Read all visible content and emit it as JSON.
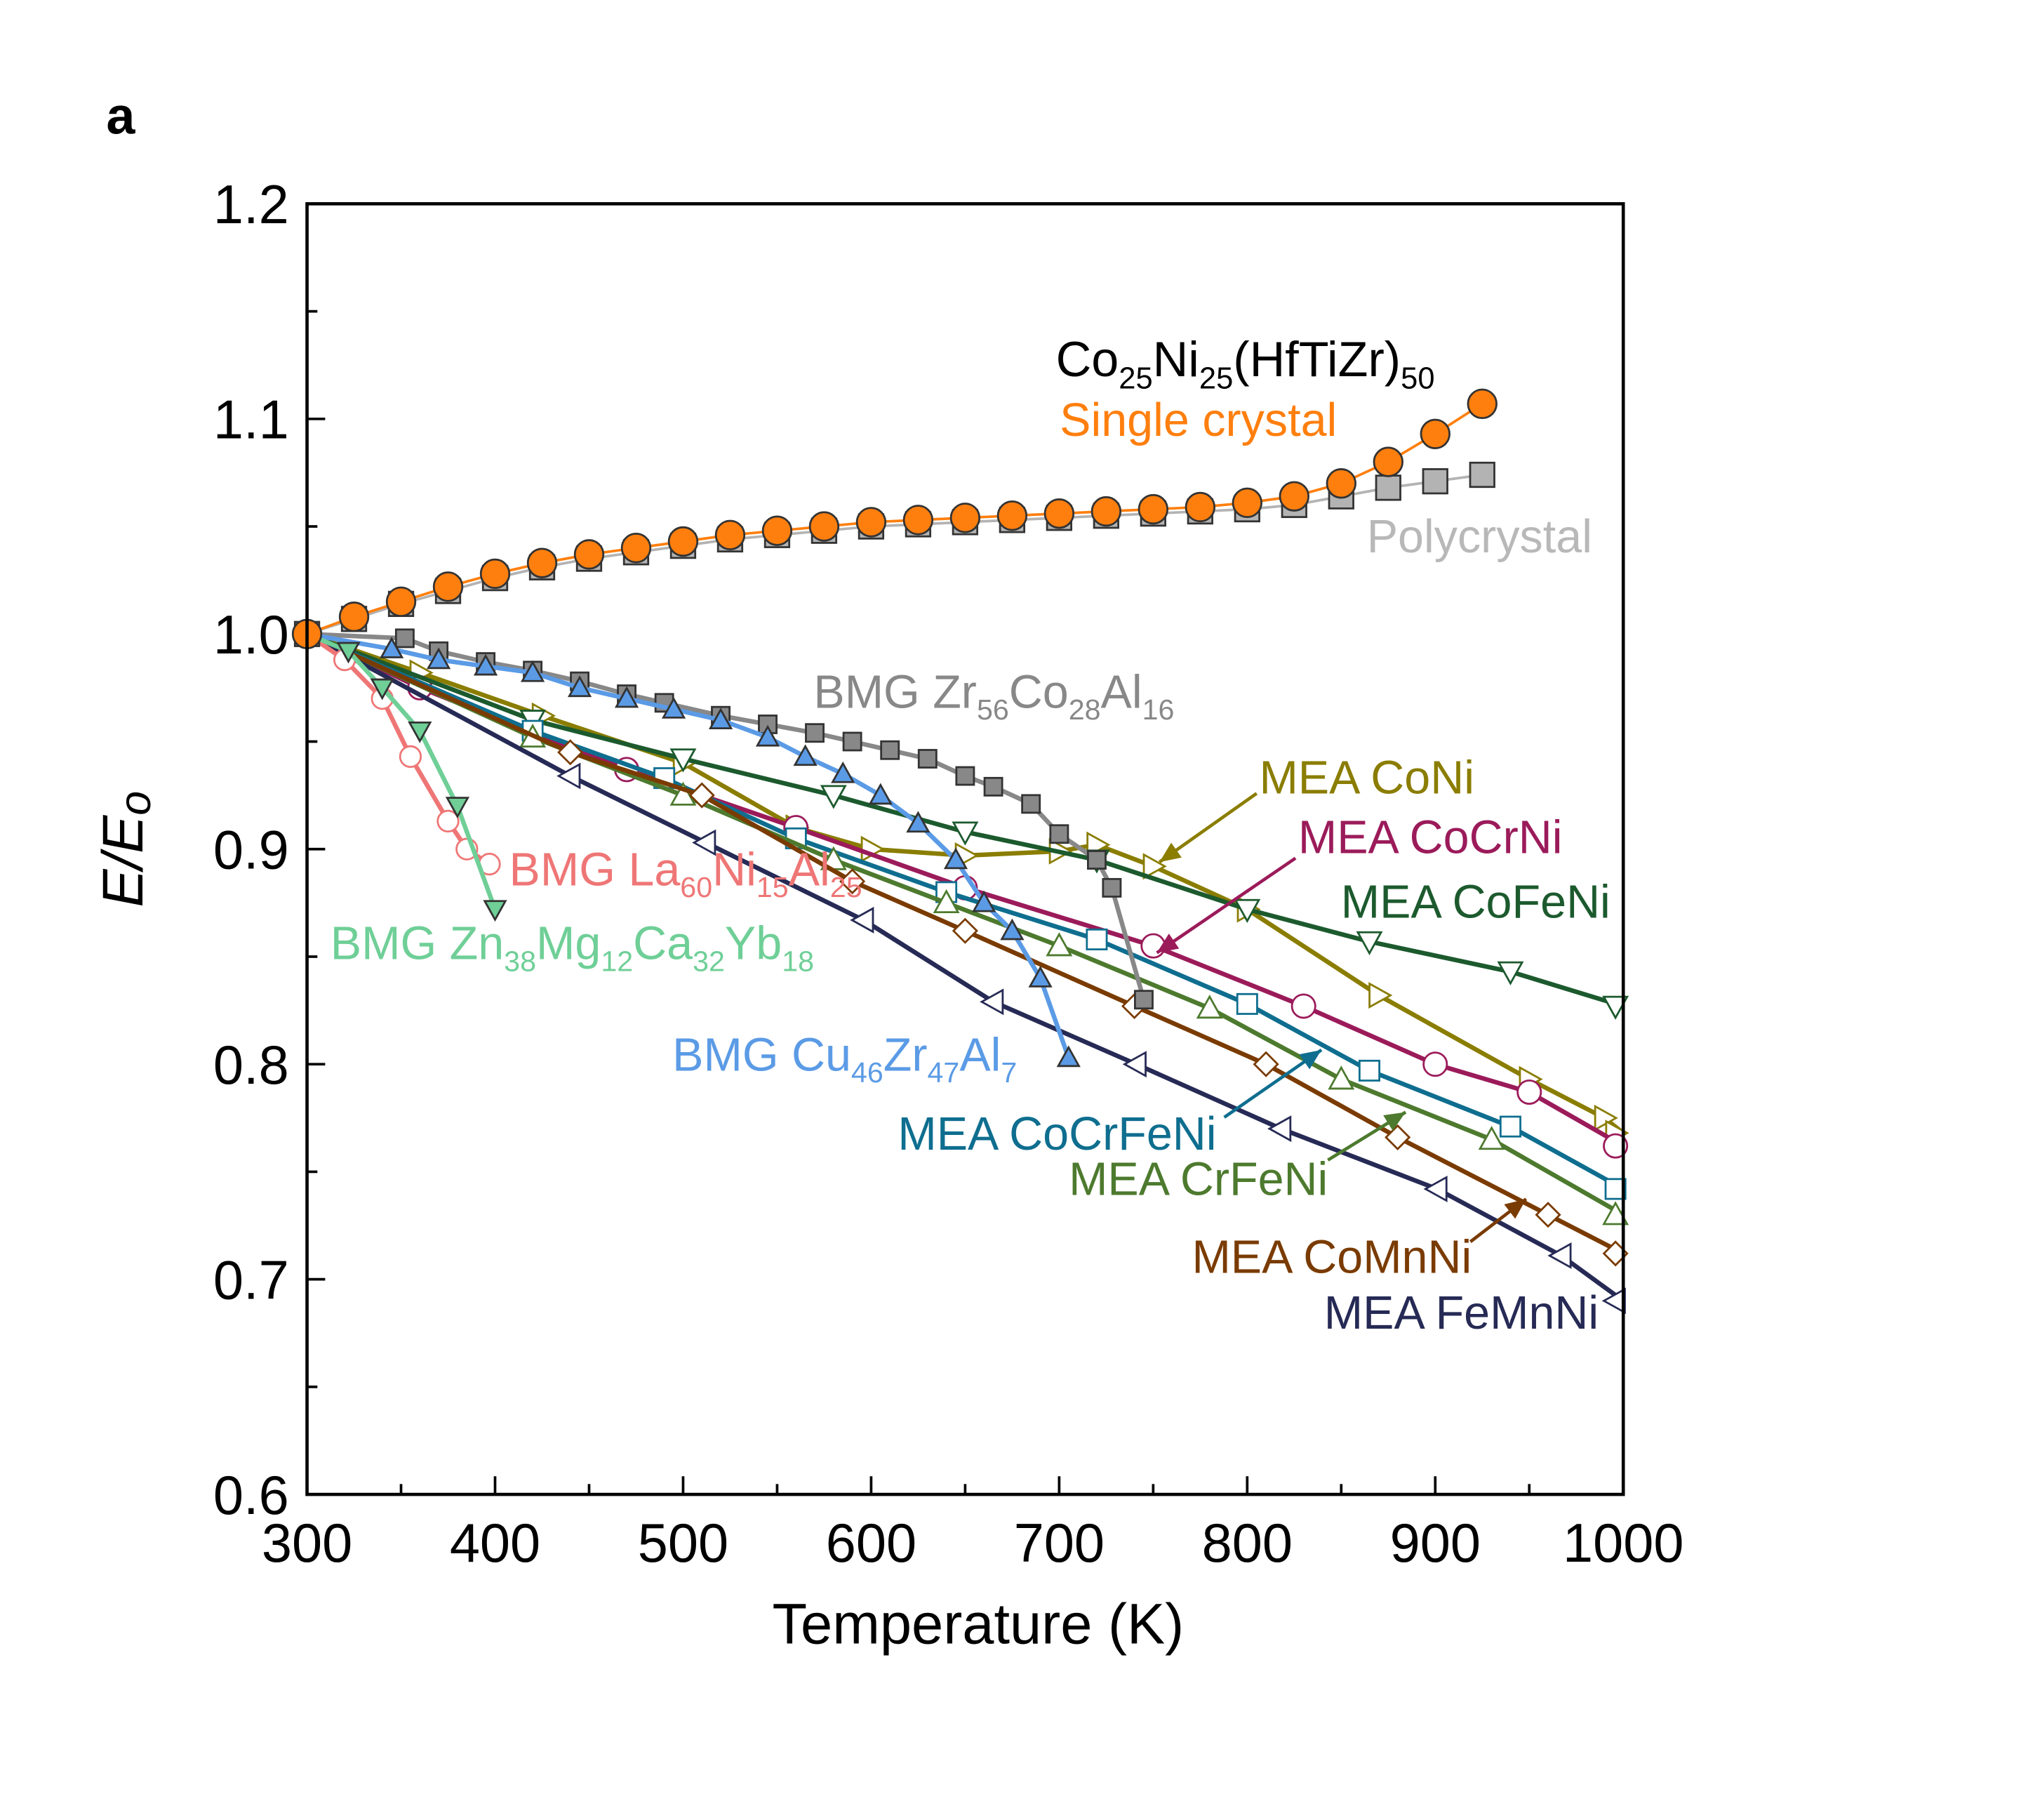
{
  "panel_label": "a",
  "chart_data": {
    "type": "line",
    "xlabel": "Temperature (K)",
    "ylabel": "E/E",
    "ylabel_sub": "o",
    "xlim": [
      300,
      1000
    ],
    "ylim": [
      0.6,
      1.2
    ],
    "xticks": [
      "300",
      "400",
      "500",
      "600",
      "700",
      "800",
      "900",
      "1000"
    ],
    "yticks": [
      "0.6",
      "0.7",
      "0.8",
      "0.9",
      "1.0",
      "1.1",
      "1.2"
    ],
    "grid": false,
    "annotations": {
      "alloy": [
        {
          "t": "Co"
        },
        {
          "t": "25",
          "sub": true
        },
        {
          "t": "Ni"
        },
        {
          "t": "25",
          "sub": true
        },
        {
          "t": "(HfTiZr)"
        },
        {
          "t": "50",
          "sub": true
        }
      ]
    },
    "series": [
      {
        "name": "Single crystal",
        "color": "#ff7f0e",
        "marker": "circle",
        "filled": true,
        "x": [
          300,
          325,
          350,
          375,
          400,
          425,
          450,
          475,
          500,
          525,
          550,
          575,
          600,
          625,
          650,
          675,
          700,
          725,
          750,
          775,
          800,
          825,
          850,
          875,
          900,
          925
        ],
        "y": [
          1.0,
          1.008,
          1.015,
          1.022,
          1.028,
          1.033,
          1.037,
          1.04,
          1.043,
          1.046,
          1.048,
          1.05,
          1.052,
          1.053,
          1.054,
          1.055,
          1.056,
          1.057,
          1.058,
          1.059,
          1.061,
          1.064,
          1.07,
          1.08,
          1.093,
          1.107
        ]
      },
      {
        "name": "Polycrystal",
        "color": "#b3b3b3",
        "marker": "square",
        "filled": true,
        "x": [
          300,
          325,
          350,
          375,
          400,
          425,
          450,
          475,
          500,
          525,
          550,
          575,
          600,
          625,
          650,
          675,
          700,
          725,
          750,
          775,
          800,
          825,
          850,
          875,
          900,
          925
        ],
        "y": [
          1.0,
          1.007,
          1.014,
          1.02,
          1.026,
          1.031,
          1.035,
          1.038,
          1.041,
          1.044,
          1.046,
          1.048,
          1.05,
          1.051,
          1.052,
          1.053,
          1.054,
          1.055,
          1.056,
          1.057,
          1.058,
          1.06,
          1.064,
          1.068,
          1.071,
          1.074
        ]
      },
      {
        "name": [
          {
            "t": "BMG Zr"
          },
          {
            "t": "56",
            "sub": true
          },
          {
            "t": "Co"
          },
          {
            "t": "28",
            "sub": true
          },
          {
            "t": "Al"
          },
          {
            "t": "16",
            "sub": true
          }
        ],
        "color": "#888888",
        "marker": "square",
        "filled": true,
        "x": [
          300,
          352,
          370,
          395,
          420,
          445,
          470,
          490,
          520,
          545,
          570,
          590,
          610,
          630,
          650,
          665,
          685,
          700,
          720,
          728,
          745
        ],
        "y": [
          1.0,
          0.998,
          0.992,
          0.987,
          0.983,
          0.978,
          0.972,
          0.968,
          0.962,
          0.958,
          0.954,
          0.95,
          0.946,
          0.942,
          0.934,
          0.929,
          0.921,
          0.907,
          0.895,
          0.882,
          0.83
        ]
      },
      {
        "name": [
          {
            "t": "BMG Cu"
          },
          {
            "t": "46",
            "sub": true
          },
          {
            "t": "Zr"
          },
          {
            "t": "47",
            "sub": true
          },
          {
            "t": "Al"
          },
          {
            "t": "7",
            "sub": true
          }
        ],
        "color": "#5b9be6",
        "marker": "triangle-up",
        "filled": true,
        "x": [
          300,
          345,
          370,
          395,
          420,
          445,
          470,
          495,
          520,
          545,
          565,
          585,
          605,
          625,
          645,
          660,
          675,
          690,
          705
        ],
        "y": [
          1.0,
          0.993,
          0.988,
          0.985,
          0.982,
          0.975,
          0.97,
          0.965,
          0.96,
          0.952,
          0.943,
          0.935,
          0.925,
          0.912,
          0.895,
          0.875,
          0.862,
          0.84,
          0.803
        ]
      },
      {
        "name": [
          {
            "t": "BMG La"
          },
          {
            "t": "60",
            "sub": true
          },
          {
            "t": "Ni"
          },
          {
            "t": "15",
            "sub": true
          },
          {
            "t": "Al"
          },
          {
            "t": "25",
            "sub": true
          }
        ],
        "color": "#ef7676",
        "marker": "circle",
        "filled": false,
        "x": [
          300,
          320,
          340,
          355,
          375,
          385,
          397
        ],
        "y": [
          1.0,
          0.988,
          0.97,
          0.943,
          0.913,
          0.9,
          0.893
        ]
      },
      {
        "name": [
          {
            "t": "BMG Zn"
          },
          {
            "t": "38",
            "sub": true
          },
          {
            "t": "Mg"
          },
          {
            "t": "12",
            "sub": true
          },
          {
            "t": "Ca"
          },
          {
            "t": "32",
            "sub": true
          },
          {
            "t": "Yb"
          },
          {
            "t": "18",
            "sub": true
          }
        ],
        "color": "#6fcf97",
        "marker": "triangle-down",
        "filled": true,
        "x": [
          300,
          322,
          340,
          360,
          380,
          400
        ],
        "y": [
          1.0,
          0.992,
          0.975,
          0.955,
          0.92,
          0.872
        ]
      },
      {
        "name": [
          {
            "t": "MEA CoNi"
          }
        ],
        "color": "#8a7d00",
        "marker": "triangle-right",
        "filled": false,
        "x": [
          300,
          360,
          425,
          500,
          560,
          600,
          650,
          700,
          720,
          750,
          800,
          870,
          950,
          990,
          1000
        ],
        "y": [
          1.0,
          0.982,
          0.962,
          0.94,
          0.91,
          0.9,
          0.897,
          0.899,
          0.902,
          0.892,
          0.872,
          0.832,
          0.793,
          0.775,
          0.768
        ]
      },
      {
        "name": [
          {
            "t": "MEA CoCrNi"
          }
        ],
        "color": "#9b1b5a",
        "marker": "circle",
        "filled": false,
        "x": [
          300,
          360,
          470,
          560,
          650,
          750,
          830,
          900,
          950,
          1000
        ],
        "y": [
          1.0,
          0.975,
          0.937,
          0.91,
          0.882,
          0.855,
          0.827,
          0.8,
          0.787,
          0.762
        ]
      },
      {
        "name": [
          {
            "t": "MEA CoFeNi"
          }
        ],
        "color": "#1c5a2e",
        "marker": "triangle-down",
        "filled": false,
        "x": [
          300,
          420,
          500,
          580,
          650,
          720,
          800,
          865,
          940,
          1000
        ],
        "y": [
          1.0,
          0.96,
          0.942,
          0.925,
          0.908,
          0.895,
          0.872,
          0.857,
          0.843,
          0.827
        ]
      },
      {
        "name": [
          {
            "t": "MEA CoCrFeNi"
          }
        ],
        "color": "#0f6e8f",
        "marker": "square",
        "filled": false,
        "x": [
          300,
          420,
          490,
          560,
          640,
          720,
          800,
          865,
          940,
          1000
        ],
        "y": [
          1.0,
          0.955,
          0.933,
          0.905,
          0.88,
          0.858,
          0.828,
          0.797,
          0.771,
          0.742
        ]
      },
      {
        "name": [
          {
            "t": "MEA CrFeNi"
          }
        ],
        "color": "#4d7a2e",
        "marker": "triangle-up",
        "filled": false,
        "x": [
          300,
          420,
          500,
          580,
          640,
          700,
          780,
          850,
          930,
          1000
        ],
        "y": [
          1.0,
          0.952,
          0.925,
          0.895,
          0.875,
          0.855,
          0.826,
          0.793,
          0.765,
          0.73
        ]
      },
      {
        "name": [
          {
            "t": "MEA CoMnNi"
          }
        ],
        "color": "#7a3b00",
        "marker": "diamond",
        "filled": false,
        "x": [
          300,
          440,
          510,
          590,
          650,
          740,
          810,
          880,
          960,
          1000
        ],
        "y": [
          1.0,
          0.945,
          0.925,
          0.885,
          0.862,
          0.827,
          0.8,
          0.766,
          0.73,
          0.712
        ]
      },
      {
        "name": [
          {
            "t": "MEA FeMnNi"
          }
        ],
        "color": "#262a55",
        "marker": "triangle-left",
        "filled": false,
        "x": [
          300,
          440,
          512,
          596,
          665,
          741,
          818,
          901,
          967,
          1000
        ],
        "y": [
          1.0,
          0.934,
          0.903,
          0.867,
          0.829,
          0.8,
          0.77,
          0.742,
          0.711,
          0.69
        ]
      }
    ]
  }
}
